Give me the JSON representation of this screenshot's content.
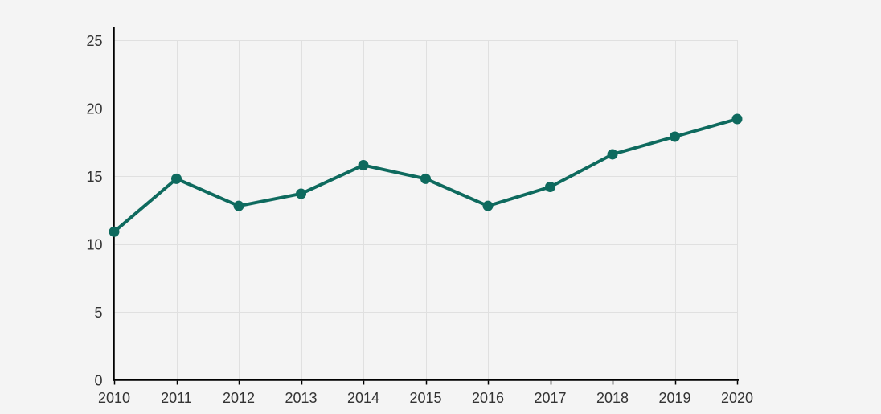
{
  "chart_data": {
    "type": "line",
    "title": "",
    "xlabel": "",
    "ylabel": "",
    "categories": [
      "2010",
      "2011",
      "2012",
      "2013",
      "2014",
      "2015",
      "2016",
      "2017",
      "2018",
      "2019",
      "2020"
    ],
    "values": [
      10.9,
      14.8,
      12.8,
      13.7,
      15.8,
      14.8,
      12.8,
      14.2,
      16.6,
      17.9,
      19.2
    ],
    "ylim": [
      0,
      25
    ],
    "yticks": [
      0,
      5,
      10,
      15,
      20,
      25
    ],
    "grid": true,
    "legend": "none",
    "marker": "circle",
    "colors": {
      "line": "#0e6a5e",
      "marker": "#0e6a5e",
      "grid": "#e0e0e0",
      "axis": "#000000",
      "tick_label": "#333333",
      "background": "#f4f4f4"
    }
  }
}
